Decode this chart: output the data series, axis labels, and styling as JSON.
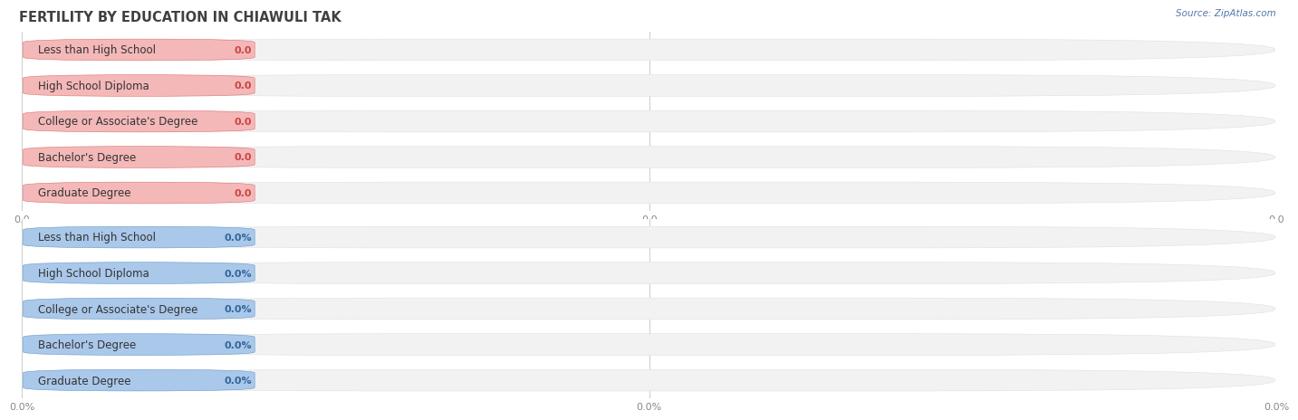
{
  "title": "FERTILITY BY EDUCATION IN CHIAWULI TAK",
  "source": "Source: ZipAtlas.com",
  "background_color": "#ffffff",
  "categories": [
    "Less than High School",
    "High School Diploma",
    "College or Associate's Degree",
    "Bachelor's Degree",
    "Graduate Degree"
  ],
  "top_values": [
    0.0,
    0.0,
    0.0,
    0.0,
    0.0
  ],
  "bottom_values": [
    0.0,
    0.0,
    0.0,
    0.0,
    0.0
  ],
  "top_bar_color": "#f4b8b8",
  "top_bar_border_color": "#e07070",
  "top_value_color": "#cc4444",
  "bottom_bar_color": "#aac8ea",
  "bottom_bar_border_color": "#6699cc",
  "bottom_value_color": "#336699",
  "bar_bg_color": "#f2f2f2",
  "bar_bg_border_color": "#e0e0e0",
  "grid_color": "#cccccc",
  "title_color": "#404040",
  "source_color": "#5577aa",
  "label_color": "#333333",
  "tick_color": "#888888",
  "top_tick_labels": [
    "0.0",
    "0.0",
    "0.0"
  ],
  "bottom_tick_labels": [
    "0.0%",
    "0.0%",
    "0.0%"
  ],
  "label_fontsize": 8.5,
  "title_fontsize": 10.5,
  "value_fontsize": 8.0,
  "tick_fontsize": 8.0,
  "source_fontsize": 7.5
}
